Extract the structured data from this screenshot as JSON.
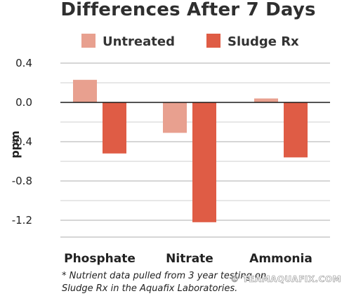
{
  "chart_data": {
    "type": "bar",
    "title": "Differences After 7 Days",
    "ylabel": "ppm",
    "xlabel": "",
    "categories": [
      "Phosphate",
      "Nitrate",
      "Ammonia"
    ],
    "series": [
      {
        "name": "Untreated",
        "values": [
          0.23,
          -0.31,
          0.04
        ],
        "color": "#e8a08f"
      },
      {
        "name": "Sludge Rx",
        "values": [
          -0.52,
          -1.22,
          -0.56
        ],
        "color": "#df5c45"
      }
    ],
    "ylim": [
      -1.4,
      0.4
    ],
    "yticks": [
      0.4,
      0.0,
      -0.4,
      -0.8,
      -1.2
    ],
    "ytick_labels": [
      "0.4",
      "0.0",
      "-0.4",
      "-0.8",
      "-1.2"
    ],
    "grid": true,
    "legend": "top-center",
    "note_lines": [
      "* Nutrient data pulled from 3 year testing on",
      "Sludge Rx in the Aquafix Laboratories."
    ]
  },
  "watermark": "© TEAMAQUAFIX.COM"
}
